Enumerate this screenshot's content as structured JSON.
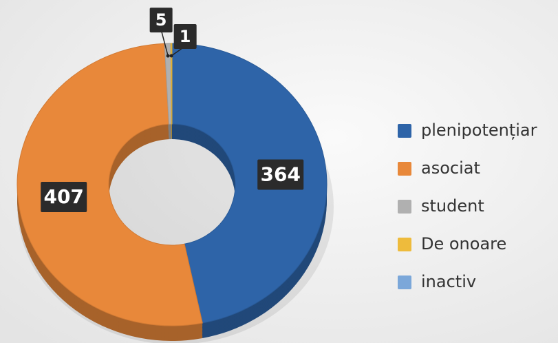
{
  "chart_data": {
    "type": "donut",
    "categories": [
      "plenipotențiar",
      "asociat",
      "student",
      "De onoare",
      "inactiv"
    ],
    "values": [
      364,
      407,
      5,
      1,
      0
    ],
    "colors": [
      "#2e64a8",
      "#e8883a",
      "#b0b0b0",
      "#eebb3c",
      "#7ba7d9"
    ],
    "legend": "right"
  }
}
